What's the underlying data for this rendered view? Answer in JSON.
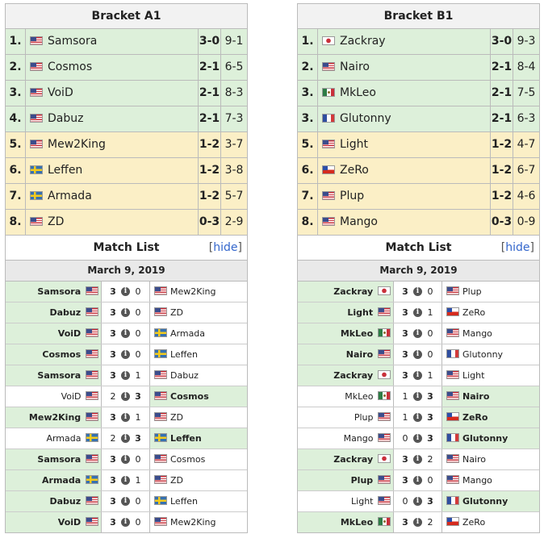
{
  "brackets": [
    {
      "title": "Bracket A1",
      "standings": [
        {
          "rank": "1.",
          "player": "Samsora",
          "flag": "us",
          "match": "3-0",
          "games": "9-1",
          "tier": "g"
        },
        {
          "rank": "2.",
          "player": "Cosmos",
          "flag": "us",
          "match": "2-1",
          "games": "6-5",
          "tier": "g"
        },
        {
          "rank": "3.",
          "player": "VoiD",
          "flag": "us",
          "match": "2-1",
          "games": "8-3",
          "tier": "g"
        },
        {
          "rank": "4.",
          "player": "Dabuz",
          "flag": "us",
          "match": "2-1",
          "games": "7-3",
          "tier": "g"
        },
        {
          "rank": "5.",
          "player": "Mew2King",
          "flag": "us",
          "match": "1-2",
          "games": "3-7",
          "tier": "y"
        },
        {
          "rank": "6.",
          "player": "Leffen",
          "flag": "se",
          "match": "1-2",
          "games": "3-8",
          "tier": "y"
        },
        {
          "rank": "7.",
          "player": "Armada",
          "flag": "se",
          "match": "1-2",
          "games": "5-7",
          "tier": "y"
        },
        {
          "rank": "8.",
          "player": "ZD",
          "flag": "us",
          "match": "0-3",
          "games": "2-9",
          "tier": "y"
        }
      ],
      "match_list_title": "Match List",
      "hide_link": "hide",
      "date": "March 9, 2019",
      "matches": [
        {
          "p1": "Samsora",
          "f1": "us",
          "s1": "3",
          "s2": "0",
          "p2": "Mew2King",
          "f2": "us",
          "winner": 1
        },
        {
          "p1": "Dabuz",
          "f1": "us",
          "s1": "3",
          "s2": "0",
          "p2": "ZD",
          "f2": "us",
          "winner": 1
        },
        {
          "p1": "VoiD",
          "f1": "us",
          "s1": "3",
          "s2": "0",
          "p2": "Armada",
          "f2": "se",
          "winner": 1
        },
        {
          "p1": "Cosmos",
          "f1": "us",
          "s1": "3",
          "s2": "0",
          "p2": "Leffen",
          "f2": "se",
          "winner": 1
        },
        {
          "p1": "Samsora",
          "f1": "us",
          "s1": "3",
          "s2": "1",
          "p2": "Dabuz",
          "f2": "us",
          "winner": 1
        },
        {
          "p1": "VoiD",
          "f1": "us",
          "s1": "2",
          "s2": "3",
          "p2": "Cosmos",
          "f2": "us",
          "winner": 2
        },
        {
          "p1": "Mew2King",
          "f1": "us",
          "s1": "3",
          "s2": "1",
          "p2": "ZD",
          "f2": "us",
          "winner": 1
        },
        {
          "p1": "Armada",
          "f1": "se",
          "s1": "2",
          "s2": "3",
          "p2": "Leffen",
          "f2": "se",
          "winner": 2
        },
        {
          "p1": "Samsora",
          "f1": "us",
          "s1": "3",
          "s2": "0",
          "p2": "Cosmos",
          "f2": "us",
          "winner": 1
        },
        {
          "p1": "Armada",
          "f1": "se",
          "s1": "3",
          "s2": "1",
          "p2": "ZD",
          "f2": "us",
          "winner": 1
        },
        {
          "p1": "Dabuz",
          "f1": "us",
          "s1": "3",
          "s2": "0",
          "p2": "Leffen",
          "f2": "se",
          "winner": 1
        },
        {
          "p1": "VoiD",
          "f1": "us",
          "s1": "3",
          "s2": "0",
          "p2": "Mew2King",
          "f2": "us",
          "winner": 1
        }
      ]
    },
    {
      "title": "Bracket B1",
      "standings": [
        {
          "rank": "1.",
          "player": "Zackray",
          "flag": "jp",
          "match": "3-0",
          "games": "9-3",
          "tier": "g"
        },
        {
          "rank": "2.",
          "player": "Nairo",
          "flag": "us",
          "match": "2-1",
          "games": "8-4",
          "tier": "g"
        },
        {
          "rank": "3.",
          "player": "MkLeo",
          "flag": "mx",
          "match": "2-1",
          "games": "7-5",
          "tier": "g"
        },
        {
          "rank": "3.",
          "player": "Glutonny",
          "flag": "fr",
          "match": "2-1",
          "games": "6-3",
          "tier": "g"
        },
        {
          "rank": "5.",
          "player": "Light",
          "flag": "us",
          "match": "1-2",
          "games": "4-7",
          "tier": "y"
        },
        {
          "rank": "6.",
          "player": "ZeRo",
          "flag": "cl",
          "match": "1-2",
          "games": "6-7",
          "tier": "y"
        },
        {
          "rank": "7.",
          "player": "Plup",
          "flag": "us",
          "match": "1-2",
          "games": "4-6",
          "tier": "y"
        },
        {
          "rank": "8.",
          "player": "Mango",
          "flag": "us",
          "match": "0-3",
          "games": "0-9",
          "tier": "y"
        }
      ],
      "match_list_title": "Match List",
      "hide_link": "hide",
      "date": "March 9, 2019",
      "matches": [
        {
          "p1": "Zackray",
          "f1": "jp",
          "s1": "3",
          "s2": "0",
          "p2": "Plup",
          "f2": "us",
          "winner": 1
        },
        {
          "p1": "Light",
          "f1": "us",
          "s1": "3",
          "s2": "1",
          "p2": "ZeRo",
          "f2": "cl",
          "winner": 1
        },
        {
          "p1": "MkLeo",
          "f1": "mx",
          "s1": "3",
          "s2": "0",
          "p2": "Mango",
          "f2": "us",
          "winner": 1
        },
        {
          "p1": "Nairo",
          "f1": "us",
          "s1": "3",
          "s2": "0",
          "p2": "Glutonny",
          "f2": "fr",
          "winner": 1
        },
        {
          "p1": "Zackray",
          "f1": "jp",
          "s1": "3",
          "s2": "1",
          "p2": "Light",
          "f2": "us",
          "winner": 1
        },
        {
          "p1": "MkLeo",
          "f1": "mx",
          "s1": "1",
          "s2": "3",
          "p2": "Nairo",
          "f2": "us",
          "winner": 2
        },
        {
          "p1": "Plup",
          "f1": "us",
          "s1": "1",
          "s2": "3",
          "p2": "ZeRo",
          "f2": "cl",
          "winner": 2
        },
        {
          "p1": "Mango",
          "f1": "us",
          "s1": "0",
          "s2": "3",
          "p2": "Glutonny",
          "f2": "fr",
          "winner": 2
        },
        {
          "p1": "Zackray",
          "f1": "jp",
          "s1": "3",
          "s2": "2",
          "p2": "Nairo",
          "f2": "us",
          "winner": 1
        },
        {
          "p1": "Plup",
          "f1": "us",
          "s1": "3",
          "s2": "0",
          "p2": "Mango",
          "f2": "us",
          "winner": 1
        },
        {
          "p1": "Light",
          "f1": "us",
          "s1": "0",
          "s2": "3",
          "p2": "Glutonny",
          "f2": "fr",
          "winner": 2
        },
        {
          "p1": "MkLeo",
          "f1": "mx",
          "s1": "3",
          "s2": "2",
          "p2": "ZeRo",
          "f2": "cl",
          "winner": 1
        }
      ]
    }
  ]
}
